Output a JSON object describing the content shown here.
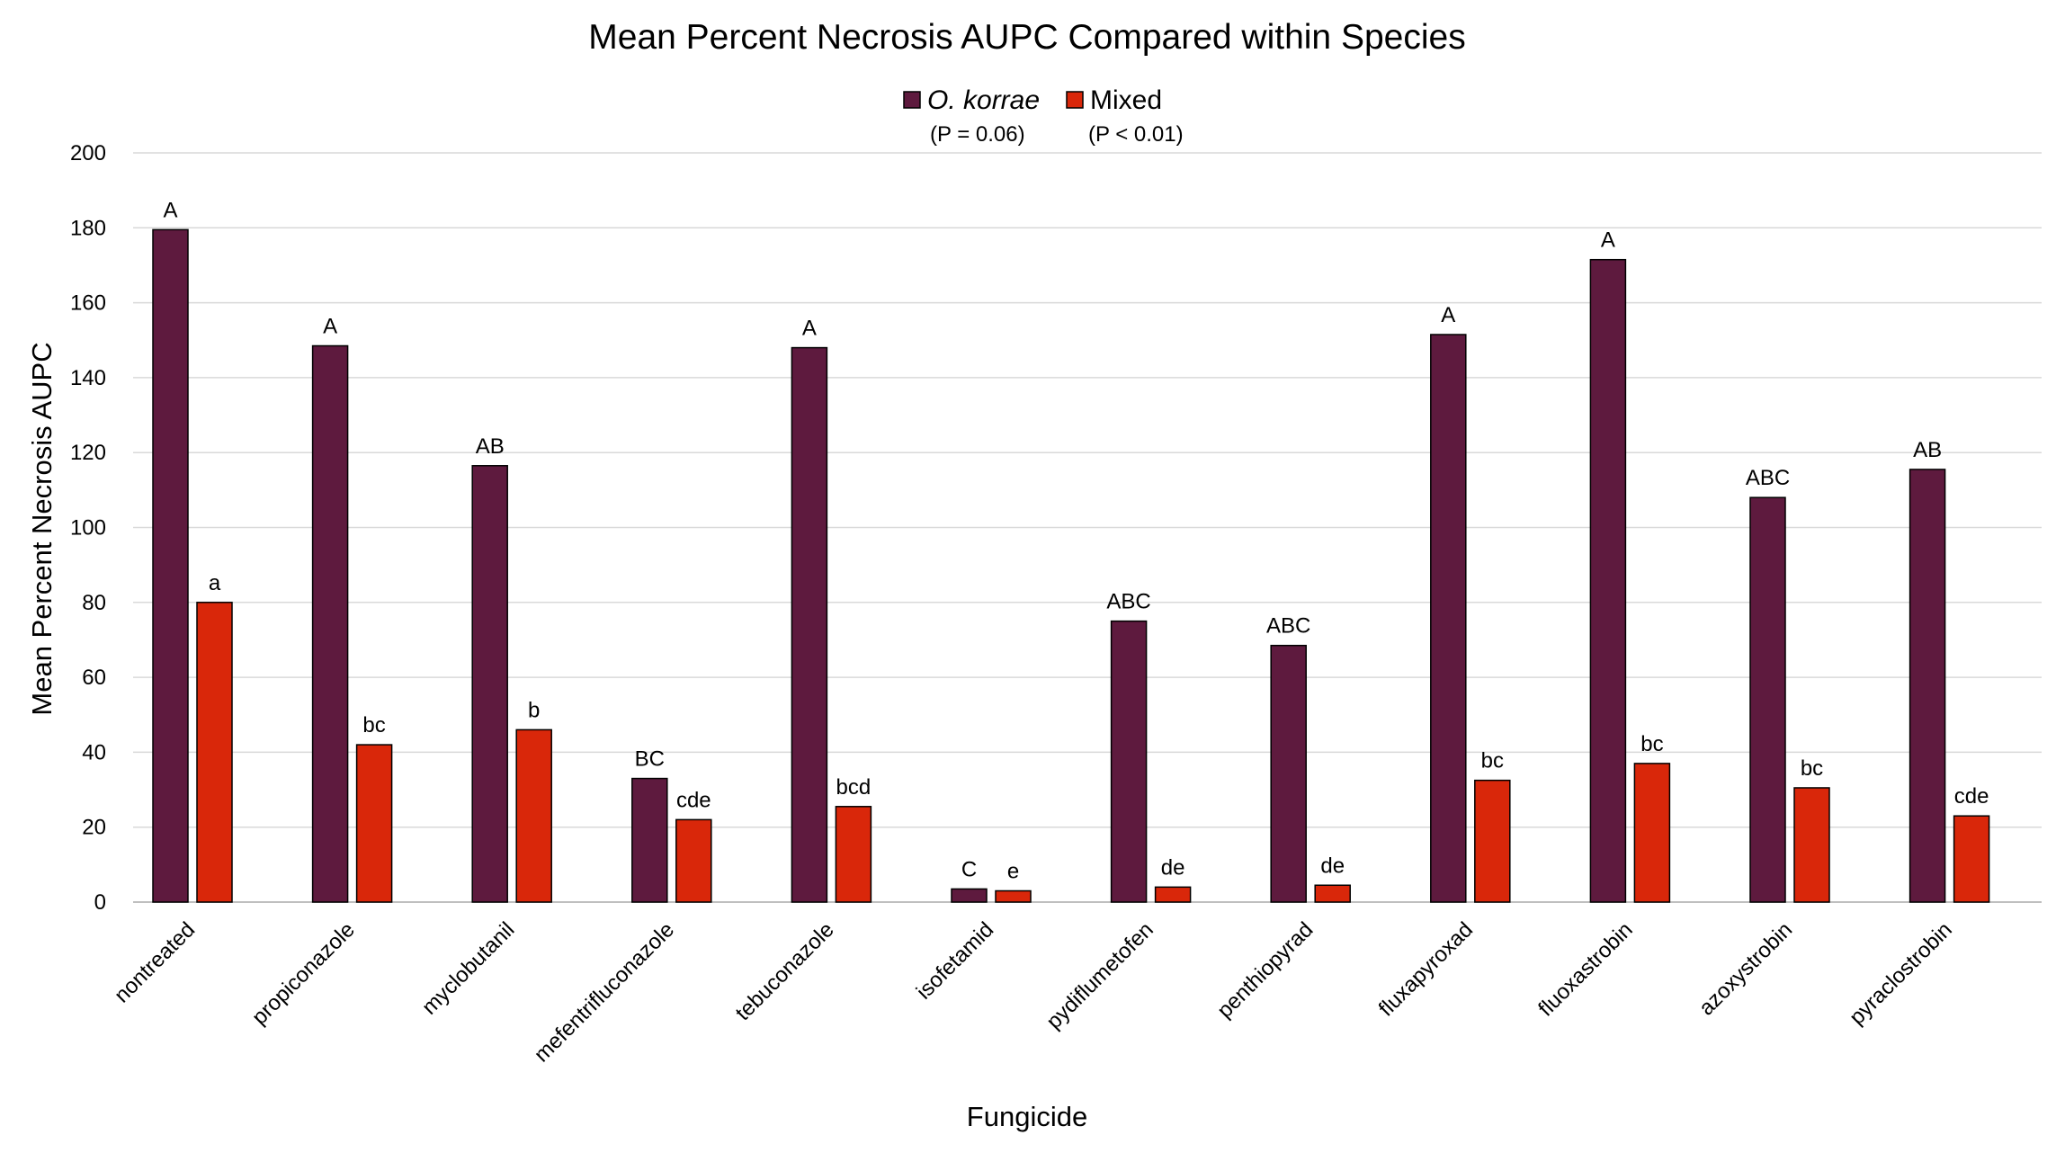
{
  "chart_data": {
    "type": "bar",
    "title": "Mean Percent Necrosis AUPC Compared within Species",
    "xlabel": "Fungicide",
    "ylabel": "Mean Percent Necrosis AUPC",
    "ylim": [
      0,
      200
    ],
    "yticks": [
      0,
      20,
      40,
      60,
      80,
      100,
      120,
      140,
      160,
      180,
      200
    ],
    "grid": true,
    "legend_position": "top-center",
    "categories": [
      "nontreated",
      "propiconazole",
      "myclobutanil",
      "mefentrifluconazole",
      "tebuconazole",
      "isofetamid",
      "pydiflumetofen",
      "penthiopyrad",
      "fluxapyroxad",
      "fluoxastrobin",
      "azoxystrobin",
      "pyraclostrobin"
    ],
    "series": [
      {
        "name": "O. korrae",
        "note": "(P = 0.06)",
        "color": "#5e1a3e",
        "values": [
          179.5,
          148.5,
          116.5,
          33.0,
          148.0,
          3.5,
          75.0,
          68.5,
          151.5,
          171.5,
          108.0,
          115.5
        ],
        "letters": [
          "A",
          "A",
          "AB",
          "BC",
          "A",
          "C",
          "ABC",
          "ABC",
          "A",
          "A",
          "ABC",
          "AB"
        ]
      },
      {
        "name": "Mixed",
        "note": "(P < 0.01)",
        "color": "#d9270a",
        "values": [
          80.0,
          42.0,
          46.0,
          22.0,
          25.5,
          3.0,
          4.0,
          4.5,
          32.5,
          37.0,
          30.5,
          23.0
        ],
        "letters": [
          "a",
          "bc",
          "b",
          "cde",
          "bcd",
          "e",
          "de",
          "de",
          "bc",
          "bc",
          "bc",
          "cde"
        ]
      }
    ]
  }
}
